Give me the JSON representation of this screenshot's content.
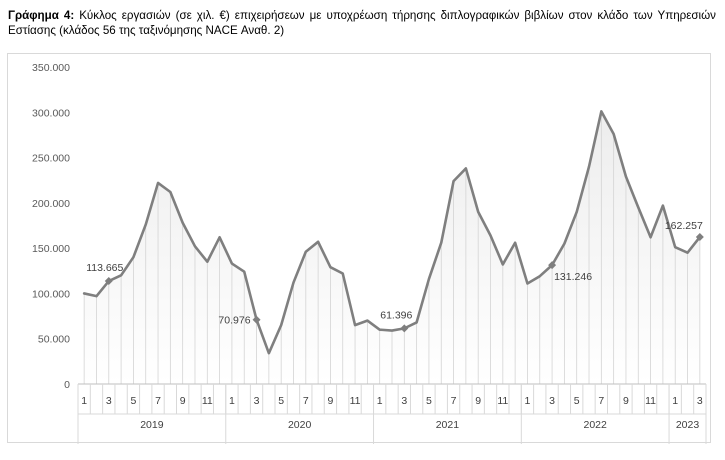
{
  "caption": {
    "label": "Γράφημα 4:",
    "text": " Κύκλος εργασιών (σε χιλ. €) επιχειρήσεων με υποχρέωση τήρησης διπλογραφικών βιβλίων στον κλάδο των Υπηρεσιών Εστίασης (κλάδος 56 της ταξινόμησης NACE Αναθ. 2)"
  },
  "chart_data": {
    "type": "line",
    "title": "",
    "xlabel": "",
    "ylabel": "",
    "ylim": [
      0,
      350000
    ],
    "yticks": [
      0,
      50000,
      100000,
      150000,
      200000,
      250000,
      300000,
      350000
    ],
    "ytick_labels": [
      "0",
      "50.000",
      "100.000",
      "150.000",
      "200.000",
      "250.000",
      "300.000",
      "350.000"
    ],
    "grid": false,
    "legend": "none",
    "line_color": "#7f7f7f",
    "years": [
      "2019",
      "2020",
      "2021",
      "2022",
      "2023"
    ],
    "month_tick_labels": [
      "1",
      "3",
      "5",
      "7",
      "9",
      "11"
    ],
    "x": [
      "2019-01",
      "2019-02",
      "2019-03",
      "2019-04",
      "2019-05",
      "2019-06",
      "2019-07",
      "2019-08",
      "2019-09",
      "2019-10",
      "2019-11",
      "2019-12",
      "2020-01",
      "2020-02",
      "2020-03",
      "2020-04",
      "2020-05",
      "2020-06",
      "2020-07",
      "2020-08",
      "2020-09",
      "2020-10",
      "2020-11",
      "2020-12",
      "2021-01",
      "2021-02",
      "2021-03",
      "2021-04",
      "2021-05",
      "2021-06",
      "2021-07",
      "2021-08",
      "2021-09",
      "2021-10",
      "2021-11",
      "2021-12",
      "2022-01",
      "2022-02",
      "2022-03",
      "2022-04",
      "2022-05",
      "2022-06",
      "2022-07",
      "2022-08",
      "2022-09",
      "2022-10",
      "2022-11",
      "2022-12",
      "2023-01",
      "2023-02",
      "2023-03"
    ],
    "values": [
      100000,
      97000,
      113665,
      120000,
      140000,
      176000,
      222000,
      212000,
      178000,
      152000,
      135000,
      162000,
      133000,
      124000,
      70976,
      34000,
      65000,
      112000,
      146000,
      157000,
      129000,
      122000,
      65000,
      70000,
      60000,
      59000,
      61396,
      68000,
      116000,
      156000,
      224000,
      238000,
      190000,
      164000,
      132000,
      156000,
      111000,
      119000,
      131246,
      155000,
      190000,
      240000,
      301000,
      276000,
      229000,
      195000,
      162000,
      197000,
      151000,
      145000,
      162257
    ],
    "markers": [
      {
        "index": 2,
        "label": "113.665"
      },
      {
        "index": 14,
        "label": "70.976"
      },
      {
        "index": 26,
        "label": "61.396"
      },
      {
        "index": 38,
        "label": "131.246"
      },
      {
        "index": 50,
        "label": "162.257"
      }
    ]
  }
}
